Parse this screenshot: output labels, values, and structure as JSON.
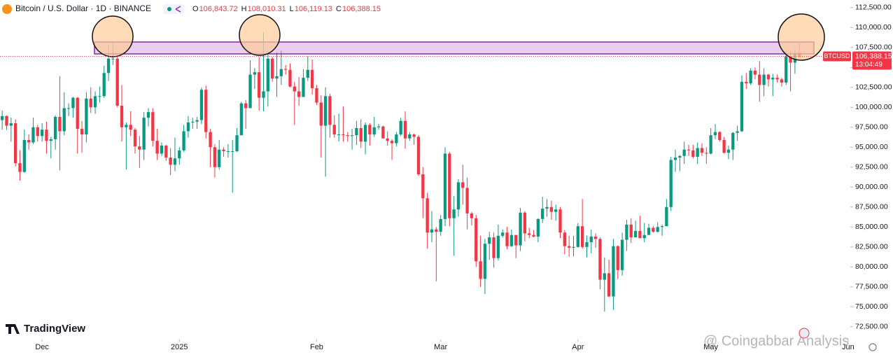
{
  "header": {
    "title": "Bitcoin / U.S. Dollar · 1D · BINANCE",
    "ohlc": [
      {
        "key": "O",
        "value": "106,843.72"
      },
      {
        "key": "H",
        "value": "108,010.31"
      },
      {
        "key": "L",
        "value": "106,119.13"
      },
      {
        "key": "C",
        "value": "106,388.15"
      }
    ]
  },
  "watermarks": {
    "logo": "TradingView",
    "credit": "@ Coingabbar Analysis"
  },
  "chart_data": {
    "type": "candlestick",
    "up_color": "#089981",
    "down_color": "#f23645",
    "grid": false,
    "xlim": [
      -0.5,
      191.5
    ],
    "ylim": [
      70900,
      113450
    ],
    "xticks": [
      {
        "value": 9,
        "label": "Dec"
      },
      {
        "value": 40,
        "label": "2025"
      },
      {
        "value": 71,
        "label": "Feb"
      },
      {
        "value": 99,
        "label": "Mar"
      },
      {
        "value": 130,
        "label": "Apr"
      },
      {
        "value": 160,
        "label": "May"
      },
      {
        "value": 191,
        "label": "Jun"
      }
    ],
    "yticks": [
      {
        "value": 72500,
        "label": "72,500.00"
      },
      {
        "value": 75000,
        "label": "75,000.00"
      },
      {
        "value": 77500,
        "label": "77,500.00"
      },
      {
        "value": 80000,
        "label": "80,000.00"
      },
      {
        "value": 82500,
        "label": "82,500.00"
      },
      {
        "value": 85000,
        "label": "85,000.00"
      },
      {
        "value": 87500,
        "label": "87,500.00"
      },
      {
        "value": 90000,
        "label": "90,000.00"
      },
      {
        "value": 92500,
        "label": "92,500.00"
      },
      {
        "value": 95000,
        "label": "95,000.00"
      },
      {
        "value": 97500,
        "label": "97,500.00"
      },
      {
        "value": 100000,
        "label": "100,000.00"
      },
      {
        "value": 102500,
        "label": "102,500.00"
      },
      {
        "value": 105000,
        "label": "105,000.00"
      },
      {
        "value": 107500,
        "label": "107,500.00"
      },
      {
        "value": 110000,
        "label": "110,000.00"
      },
      {
        "value": 112500,
        "label": "112,500.00"
      }
    ],
    "last_price": {
      "value": 106388.15,
      "label": "106,388.15",
      "symbol": "BTCUSD",
      "countdown": "13:04:49"
    },
    "open": [
      98400,
      98900,
      97700,
      98000,
      93000,
      91900,
      95900,
      95600,
      97500,
      96400,
      97200,
      95800,
      96000,
      98800,
      97000,
      99900,
      99900,
      101200,
      97300,
      96600,
      101100,
      100000,
      101400,
      101400,
      104300,
      106100,
      106100,
      100200,
      97500,
      97800,
      97200,
      95100,
      94700,
      98700,
      99400,
      95800,
      94200,
      95200,
      93700,
      92800,
      93600,
      94600,
      97000,
      98100,
      98200,
      98400,
      102200,
      96900,
      95000,
      92500,
      94700,
      94500,
      94500,
      94500,
      96500,
      100500,
      99900,
      104100,
      104400,
      101200,
      102000,
      106100,
      103600,
      103900,
      104800,
      104700,
      102600,
      102000,
      101300,
      103700,
      104700,
      102400,
      100600,
      97700,
      101400,
      97800,
      96600,
      96600,
      96500,
      96400,
      96500,
      97400,
      95700,
      97800,
      96600,
      97500,
      97600,
      96100,
      95800,
      95500,
      96600,
      98300,
      96100,
      96600,
      96300,
      91600,
      88600,
      84300,
      84700,
      84400,
      86000,
      94200,
      86100,
      87200,
      90600,
      89900,
      86700,
      86100,
      80700,
      78500,
      82900,
      83700,
      81100,
      83900,
      84300,
      82600,
      84000,
      82700,
      86800,
      84200,
      84000,
      83800,
      86000,
      87300,
      87500,
      86900,
      87200,
      84300,
      82600,
      82400,
      82500,
      85100,
      82500,
      83100,
      83800,
      83500,
      78400,
      79200,
      76300,
      82600,
      79600,
      83400,
      85300,
      83700,
      84500,
      83600,
      84000,
      84900,
      84400,
      85000,
      85100,
      87500,
      93400,
      93700,
      93900,
      94700,
      94600,
      93800,
      94900,
      94300,
      94200,
      96500,
      96900,
      95900,
      94300,
      94700,
      96800,
      97000,
      103200,
      103000,
      104600,
      104100,
      102800,
      104100,
      103500,
      103700,
      103500,
      103100,
      106400,
      105600,
      106843.72
    ],
    "high": [
      99600,
      99000,
      98700,
      98500,
      94600,
      97200,
      96600,
      98700,
      97800,
      98000,
      98200,
      96300,
      99000,
      103900,
      101900,
      100500,
      101300,
      101300,
      98300,
      101900,
      102500,
      102000,
      102600,
      105200,
      107800,
      108300,
      106500,
      102800,
      98100,
      99500,
      97400,
      96400,
      99400,
      99900,
      99900,
      97300,
      95600,
      95300,
      94900,
      96200,
      95000,
      97800,
      98900,
      98700,
      98800,
      102500,
      102700,
      97300,
      95400,
      95900,
      95000,
      95400,
      95900,
      97400,
      100700,
      100900,
      105900,
      104900,
      106300,
      109400,
      107100,
      106300,
      106900,
      107100,
      105300,
      105500,
      103200,
      103800,
      104800,
      106400,
      106000,
      102800,
      101500,
      102500,
      101700,
      99000,
      99200,
      100100,
      96900,
      97300,
      98300,
      98500,
      98100,
      98000,
      98800,
      97900,
      97700,
      97000,
      96000,
      96900,
      98700,
      99500,
      96900,
      96700,
      96500,
      92500,
      89300,
      87000,
      85000,
      86500,
      95000,
      94400,
      88900,
      91000,
      92800,
      91200,
      86900,
      86500,
      83900,
      83500,
      84400,
      84300,
      85300,
      84700,
      85000,
      84700,
      84000,
      87400,
      87000,
      84900,
      84600,
      86100,
      88800,
      88500,
      88300,
      87800,
      87500,
      84600,
      83900,
      83900,
      85500,
      88500,
      83900,
      84700,
      84200,
      83700,
      81200,
      80900,
      83500,
      82700,
      84300,
      85900,
      86100,
      85800,
      86400,
      85500,
      85400,
      85100,
      85600,
      85300,
      88500,
      93800,
      94700,
      94000,
      95700,
      95300,
      95300,
      95600,
      95500,
      95000,
      97400,
      97900,
      97000,
      96300,
      95200,
      96900,
      97700,
      104000,
      104300,
      104900,
      105000,
      105800,
      104900,
      104200,
      104200,
      104100,
      103700,
      107100,
      107000,
      107300,
      108010.31
    ],
    "low": [
      97200,
      97200,
      95700,
      92600,
      90800,
      91800,
      94700,
      95400,
      95700,
      95700,
      94200,
      93600,
      94700,
      92100,
      96500,
      98900,
      98700,
      94200,
      94300,
      95600,
      99300,
      99200,
      100600,
      101200,
      103300,
      105300,
      100000,
      95700,
      92200,
      96400,
      94200,
      92400,
      93400,
      97600,
      95100,
      93400,
      93900,
      93300,
      91500,
      92000,
      92800,
      94400,
      96200,
      97300,
      97300,
      97900,
      96100,
      92500,
      91200,
      92200,
      93800,
      93700,
      89300,
      94400,
      96500,
      97300,
      99900,
      102300,
      99600,
      99500,
      100100,
      103200,
      101300,
      102800,
      104100,
      102500,
      97800,
      100200,
      101300,
      103300,
      101600,
      100300,
      93700,
      91300,
      96200,
      96200,
      95700,
      95700,
      95700,
      94700,
      95300,
      94900,
      94100,
      95200,
      96300,
      97200,
      96100,
      95200,
      93400,
      95100,
      96400,
      94800,
      95800,
      95300,
      91400,
      86100,
      82300,
      83100,
      78200,
      83900,
      85100,
      85100,
      81400,
      86300,
      87800,
      84700,
      85200,
      80000,
      77500,
      76600,
      80900,
      79900,
      80800,
      83700,
      82200,
      82500,
      81100,
      82000,
      83200,
      83600,
      83700,
      83100,
      85500,
      86300,
      85900,
      85800,
      83600,
      81600,
      81300,
      81300,
      82400,
      82300,
      81200,
      81700,
      82400,
      77200,
      74400,
      76200,
      74600,
      78500,
      78900,
      82000,
      83000,
      83700,
      83600,
      83100,
      84000,
      84300,
      84300,
      83900,
      85100,
      87000,
      91900,
      92000,
      92900,
      93900,
      93600,
      92900,
      93900,
      92900,
      94100,
      96000,
      95700,
      94200,
      93500,
      93400,
      95800,
      96900,
      102300,
      102800,
      103500,
      100700,
      101400,
      102600,
      101400,
      103100,
      102600,
      102800,
      102000,
      104200,
      106119.13
    ],
    "close": [
      98900,
      97700,
      98000,
      93000,
      91900,
      95900,
      95600,
      97500,
      96400,
      97200,
      95800,
      96000,
      98800,
      97000,
      99900,
      99900,
      101200,
      97300,
      96600,
      101100,
      100000,
      101400,
      101400,
      104300,
      106100,
      106100,
      100200,
      97500,
      97800,
      97200,
      95100,
      94700,
      98700,
      99400,
      95800,
      94200,
      95200,
      93700,
      92800,
      93600,
      94600,
      97000,
      98100,
      98200,
      98400,
      102200,
      96900,
      95000,
      92500,
      94700,
      94500,
      94500,
      94500,
      96500,
      100500,
      99900,
      104100,
      104400,
      101200,
      102000,
      106100,
      103600,
      103900,
      104800,
      104700,
      102600,
      102000,
      101300,
      103700,
      104700,
      102400,
      100600,
      97700,
      101400,
      97800,
      96600,
      96600,
      96500,
      96400,
      96500,
      97400,
      95700,
      97800,
      96600,
      97500,
      97600,
      96100,
      95800,
      95500,
      96600,
      98300,
      96100,
      96600,
      96300,
      91600,
      88600,
      84300,
      84700,
      84400,
      86000,
      94200,
      86100,
      87200,
      90600,
      89900,
      86700,
      86100,
      80700,
      78500,
      82900,
      83700,
      81100,
      83900,
      84300,
      82600,
      84000,
      82700,
      86800,
      84200,
      84000,
      83800,
      86000,
      87300,
      87500,
      86900,
      87200,
      84300,
      82600,
      82400,
      82500,
      85100,
      82500,
      83100,
      83800,
      83500,
      78400,
      79200,
      76300,
      82600,
      79600,
      83400,
      85300,
      83700,
      84500,
      83600,
      84000,
      84900,
      84400,
      85000,
      85100,
      87500,
      93400,
      93700,
      93900,
      94700,
      94600,
      93800,
      94900,
      94300,
      94200,
      96500,
      96900,
      95900,
      94300,
      94700,
      96800,
      97000,
      103200,
      103000,
      104600,
      104100,
      102800,
      104100,
      103500,
      103700,
      103500,
      103100,
      106400,
      105600,
      106800,
      106388.15
    ]
  }
}
